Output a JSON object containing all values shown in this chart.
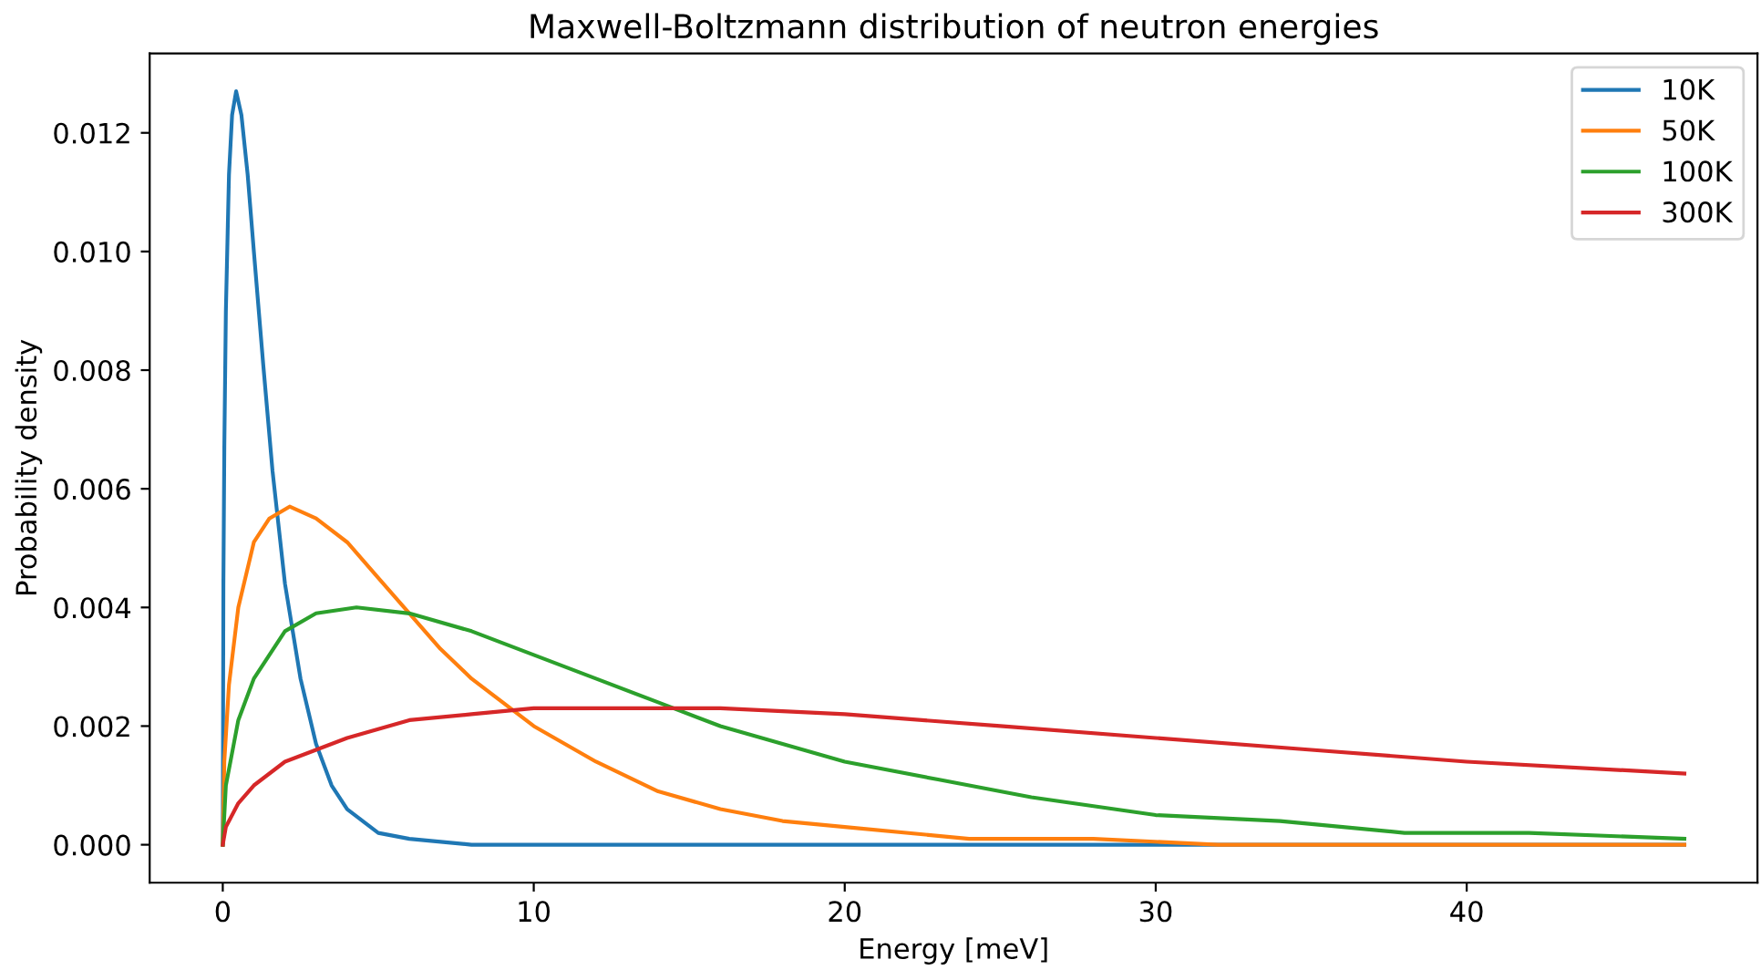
{
  "chart_data": {
    "type": "line",
    "title": "Maxwell-Boltzmann distribution of neutron energies",
    "xlabel": "Energy [meV]",
    "ylabel": "Probability density",
    "xlim": [
      -2.35,
      49.35
    ],
    "ylim": [
      -0.00064,
      0.01334
    ],
    "xticks": [
      0,
      10,
      20,
      30,
      40
    ],
    "yticks": [
      {
        "value": 0,
        "label": "0.000"
      },
      {
        "value": 0.002,
        "label": "0.002"
      },
      {
        "value": 0.004,
        "label": "0.004"
      },
      {
        "value": 0.006,
        "label": "0.006"
      },
      {
        "value": 0.008,
        "label": "0.008"
      },
      {
        "value": 0.01,
        "label": "0.010"
      },
      {
        "value": 0.012,
        "label": "0.012"
      }
    ],
    "grid": false,
    "legend": "top right",
    "series": [
      {
        "name": "10K",
        "color": "#1f77b4",
        "x": [
          0,
          0.02,
          0.05,
          0.1,
          0.2,
          0.3,
          0.43,
          0.6,
          0.8,
          1.0,
          1.3,
          1.6,
          2.0,
          2.5,
          3,
          3.5,
          4,
          5,
          6,
          8,
          10,
          20,
          30,
          47
        ],
        "values": [
          0,
          0.0044,
          0.0067,
          0.009,
          0.0113,
          0.0123,
          0.0127,
          0.0123,
          0.0113,
          0.01,
          0.0081,
          0.0063,
          0.0044,
          0.0028,
          0.0017,
          0.001,
          0.0006,
          0.0002,
          0.0001,
          0,
          0,
          0,
          0,
          0
        ]
      },
      {
        "name": "50K",
        "color": "#ff7f0e",
        "x": [
          0,
          0.05,
          0.2,
          0.5,
          1,
          1.5,
          2.15,
          3,
          4,
          5,
          6,
          7,
          8,
          10,
          12,
          14,
          16,
          18,
          20,
          24,
          28,
          32,
          36,
          40,
          47
        ],
        "values": [
          0,
          0.0014,
          0.0027,
          0.004,
          0.0051,
          0.0055,
          0.0057,
          0.0055,
          0.0051,
          0.0045,
          0.0039,
          0.0033,
          0.0028,
          0.002,
          0.0014,
          0.0009,
          0.0006,
          0.0004,
          0.0003,
          0.0001,
          0.0001,
          0,
          0,
          0,
          0
        ]
      },
      {
        "name": "100K",
        "color": "#2ca02c",
        "x": [
          0,
          0.1,
          0.5,
          1,
          2,
          3,
          4.3,
          6,
          8,
          10,
          12,
          14,
          16,
          18,
          20,
          23,
          26,
          30,
          34,
          38,
          42,
          47
        ],
        "values": [
          0,
          0.001,
          0.0021,
          0.0028,
          0.0036,
          0.0039,
          0.004,
          0.0039,
          0.0036,
          0.0032,
          0.0028,
          0.0024,
          0.002,
          0.0017,
          0.0014,
          0.0011,
          0.0008,
          0.0005,
          0.0004,
          0.0002,
          0.0002,
          0.0001
        ]
      },
      {
        "name": "300K",
        "color": "#d62728",
        "x": [
          0,
          0.1,
          0.5,
          1,
          2,
          4,
          6,
          8,
          10,
          13,
          16,
          20,
          25,
          30,
          35,
          40,
          47
        ],
        "values": [
          0,
          0.0003,
          0.0007,
          0.001,
          0.0014,
          0.0018,
          0.0021,
          0.0022,
          0.0023,
          0.0023,
          0.0023,
          0.0022,
          0.002,
          0.0018,
          0.0016,
          0.0014,
          0.0012
        ]
      }
    ]
  }
}
